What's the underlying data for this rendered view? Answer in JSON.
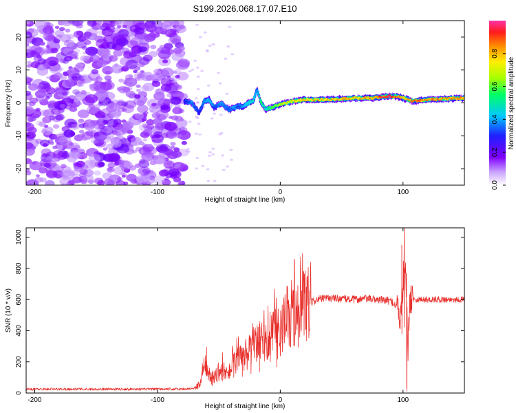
{
  "title": "S199.2026.068.17.07.E10",
  "top_panel": {
    "ylabel": "Frequency (Hz)",
    "xlabel": "Height of straight line (km)",
    "colorbar_label": "Normalized spectral amplitude"
  },
  "bottom_panel": {
    "ylabel": "SNR (10 * v/v)",
    "xlabel": "Height of straight line (km)"
  },
  "colors": {
    "line": "#e8312d",
    "noise": "#9b59e8",
    "axis": "#000000"
  },
  "chart_data": [
    {
      "type": "heatmap",
      "title": "S199.2026.068.17.07.E10",
      "xlabel": "Height of straight line (km)",
      "ylabel": "Frequency (Hz)",
      "xlim": [
        -207,
        150
      ],
      "ylim": [
        -25,
        25
      ],
      "x_ticks": [
        -200,
        -100,
        0,
        100
      ],
      "x_tick_labels": [
        "-200",
        "-100",
        "0",
        "100"
      ],
      "y_ticks": [
        -20,
        -10,
        0,
        10,
        20
      ],
      "y_tick_labels": [
        "-20",
        "-10",
        "0",
        "10",
        "20"
      ],
      "noise_region_x": [
        -207,
        -78
      ],
      "signal_ridge": {
        "x": [
          -78,
          -72,
          -66,
          -62,
          -58,
          -54,
          -48,
          -42,
          -38,
          -34,
          -30,
          -26,
          -22,
          -19,
          -16,
          -12,
          -8,
          -4,
          0,
          10,
          20,
          40,
          60,
          75,
          88,
          95,
          100,
          108,
          120,
          150
        ],
        "y": [
          0.5,
          0,
          -3,
          0.5,
          1,
          -1.5,
          0,
          -2,
          -1.5,
          -1,
          -1,
          0,
          0.5,
          4,
          0.5,
          -2,
          -1.5,
          -1,
          -0.5,
          0.5,
          1,
          1,
          1.5,
          1.5,
          2,
          2,
          1.5,
          0.5,
          1,
          1.5
        ],
        "amp": [
          0.3,
          0.4,
          0.3,
          0.4,
          0.45,
          0.35,
          0.4,
          0.35,
          0.4,
          0.35,
          0.4,
          0.45,
          0.5,
          0.4,
          0.55,
          0.5,
          0.6,
          0.65,
          0.7,
          0.8,
          0.85,
          0.85,
          0.85,
          0.9,
          1.0,
          0.95,
          0.85,
          0.95,
          0.9,
          0.9
        ]
      },
      "colorbar": {
        "label": "Normalized spectral amplitude",
        "range": [
          0,
          1
        ],
        "ticks": [
          0.0,
          0.2,
          0.4,
          0.6,
          0.8
        ],
        "tick_labels": [
          "0.0",
          "0.2",
          "0.4",
          "0.6",
          "0.8"
        ]
      }
    },
    {
      "type": "line",
      "xlabel": "Height of straight line (km)",
      "ylabel": "SNR (10 * v/v)",
      "xlim": [
        -207,
        150
      ],
      "ylim": [
        0,
        1060
      ],
      "x_ticks": [
        -200,
        -100,
        0,
        100
      ],
      "x_tick_labels": [
        "-200",
        "-100",
        "0",
        "100"
      ],
      "y_ticks": [
        0,
        200,
        400,
        600,
        800,
        1000
      ],
      "y_tick_labels": [
        "0",
        "200",
        "400",
        "600",
        "800",
        "1000"
      ],
      "series": [
        {
          "name": "SNR",
          "color": "#e8312d",
          "envelope_x": [
            -207,
            -80,
            -70,
            -65,
            -62,
            -58,
            -55,
            -50,
            -45,
            -40,
            -35,
            -30,
            -25,
            -20,
            -15,
            -10,
            -5,
            0,
            5,
            10,
            15,
            20,
            25,
            30,
            40,
            50,
            60,
            70,
            80,
            90,
            95,
            98,
            100,
            102,
            104,
            106,
            110,
            120,
            130,
            150
          ],
          "envelope_y": [
            25,
            25,
            30,
            60,
            160,
            120,
            80,
            140,
            120,
            160,
            200,
            230,
            260,
            300,
            330,
            350,
            380,
            410,
            450,
            480,
            520,
            550,
            580,
            600,
            610,
            605,
            600,
            605,
            600,
            590,
            560,
            480,
            700,
            900,
            300,
            620,
            600,
            600,
            600,
            600
          ],
          "spikes": [
            {
              "x": -60,
              "y": 295
            },
            {
              "x": -47,
              "y": 260
            },
            {
              "x": -38,
              "y": 250
            },
            {
              "x": -31,
              "y": 265
            },
            {
              "x": -24,
              "y": 310
            },
            {
              "x": -17,
              "y": 340
            },
            {
              "x": -10,
              "y": 560
            },
            {
              "x": -3,
              "y": 420
            },
            {
              "x": 99,
              "y": 950
            },
            {
              "x": 101,
              "y": 1060
            },
            {
              "x": 103,
              "y": 30
            }
          ]
        }
      ]
    }
  ]
}
